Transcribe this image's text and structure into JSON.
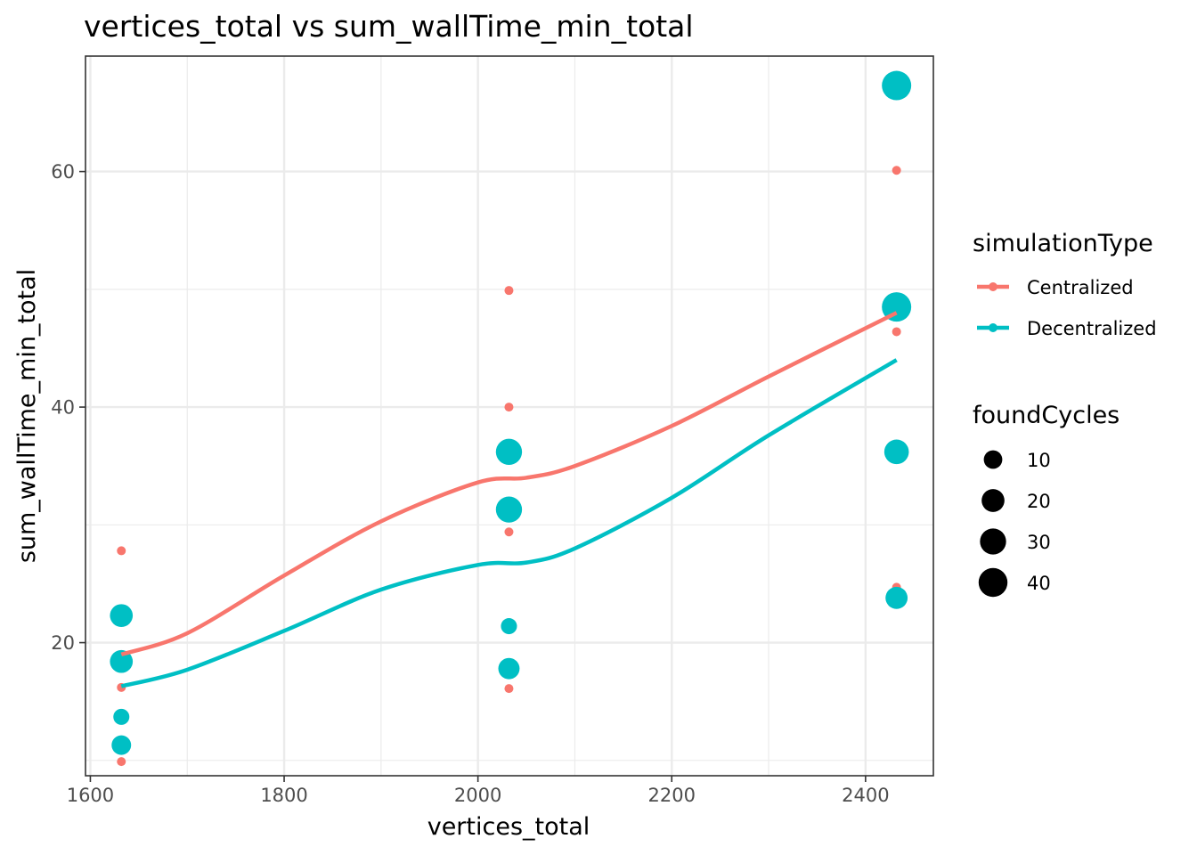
{
  "chart_data": {
    "type": "scatter",
    "title": "vertices_total  vs  sum_wallTime_min_total",
    "xlabel": "vertices_total",
    "ylabel": "sum_wallTime_min_total",
    "xlim": [
      1595,
      2470
    ],
    "ylim": [
      8.7,
      69.8
    ],
    "x_ticks": [
      1600,
      1800,
      2000,
      2200,
      2400
    ],
    "y_ticks": [
      20,
      40,
      60
    ],
    "grid": true,
    "legend_placement": "right",
    "colors": {
      "Centralized": "#F8766D",
      "Decentralized": "#00BFC4"
    },
    "color_legend": {
      "title": "simulationType",
      "items": [
        "Centralized",
        "Decentralized"
      ]
    },
    "size_legend": {
      "title": "foundCycles",
      "values": [
        10,
        20,
        30,
        40
      ]
    },
    "series": [
      {
        "name": "Centralized",
        "points": [
          {
            "x": 1632,
            "y": 27.8,
            "size": 1
          },
          {
            "x": 1632,
            "y": 22.0,
            "size": 1
          },
          {
            "x": 1632,
            "y": 16.2,
            "size": 1
          },
          {
            "x": 1632,
            "y": 9.9,
            "size": 1
          },
          {
            "x": 2032,
            "y": 49.9,
            "size": 1
          },
          {
            "x": 2032,
            "y": 40.0,
            "size": 1
          },
          {
            "x": 2032,
            "y": 29.4,
            "size": 1
          },
          {
            "x": 2032,
            "y": 16.1,
            "size": 1
          },
          {
            "x": 2432,
            "y": 60.1,
            "size": 1
          },
          {
            "x": 2432,
            "y": 46.4,
            "size": 1
          },
          {
            "x": 2432,
            "y": 24.7,
            "size": 1
          }
        ],
        "smooth": [
          {
            "x": 1632,
            "y": 19.0
          },
          {
            "x": 1700,
            "y": 20.8
          },
          {
            "x": 1800,
            "y": 25.7
          },
          {
            "x": 1900,
            "y": 30.3
          },
          {
            "x": 2000,
            "y": 33.6
          },
          {
            "x": 2050,
            "y": 34.0
          },
          {
            "x": 2100,
            "y": 35.0
          },
          {
            "x": 2200,
            "y": 38.4
          },
          {
            "x": 2300,
            "y": 42.6
          },
          {
            "x": 2432,
            "y": 48.0
          }
        ]
      },
      {
        "name": "Decentralized",
        "points": [
          {
            "x": 1632,
            "y": 22.3,
            "size": 20
          },
          {
            "x": 1632,
            "y": 18.4,
            "size": 20
          },
          {
            "x": 1632,
            "y": 13.7,
            "size": 6
          },
          {
            "x": 1632,
            "y": 11.3,
            "size": 12
          },
          {
            "x": 2032,
            "y": 36.2,
            "size": 30
          },
          {
            "x": 2032,
            "y": 31.3,
            "size": 30
          },
          {
            "x": 2032,
            "y": 21.4,
            "size": 6
          },
          {
            "x": 2032,
            "y": 17.8,
            "size": 16
          },
          {
            "x": 2432,
            "y": 67.3,
            "size": 42
          },
          {
            "x": 2432,
            "y": 48.5,
            "size": 42
          },
          {
            "x": 2432,
            "y": 36.2,
            "size": 25
          },
          {
            "x": 2432,
            "y": 23.8,
            "size": 18
          }
        ],
        "smooth": [
          {
            "x": 1632,
            "y": 16.3
          },
          {
            "x": 1700,
            "y": 17.7
          },
          {
            "x": 1800,
            "y": 21.0
          },
          {
            "x": 1900,
            "y": 24.5
          },
          {
            "x": 2000,
            "y": 26.6
          },
          {
            "x": 2050,
            "y": 26.8
          },
          {
            "x": 2100,
            "y": 28.0
          },
          {
            "x": 2200,
            "y": 32.3
          },
          {
            "x": 2300,
            "y": 37.6
          },
          {
            "x": 2432,
            "y": 44.0
          }
        ]
      }
    ]
  }
}
